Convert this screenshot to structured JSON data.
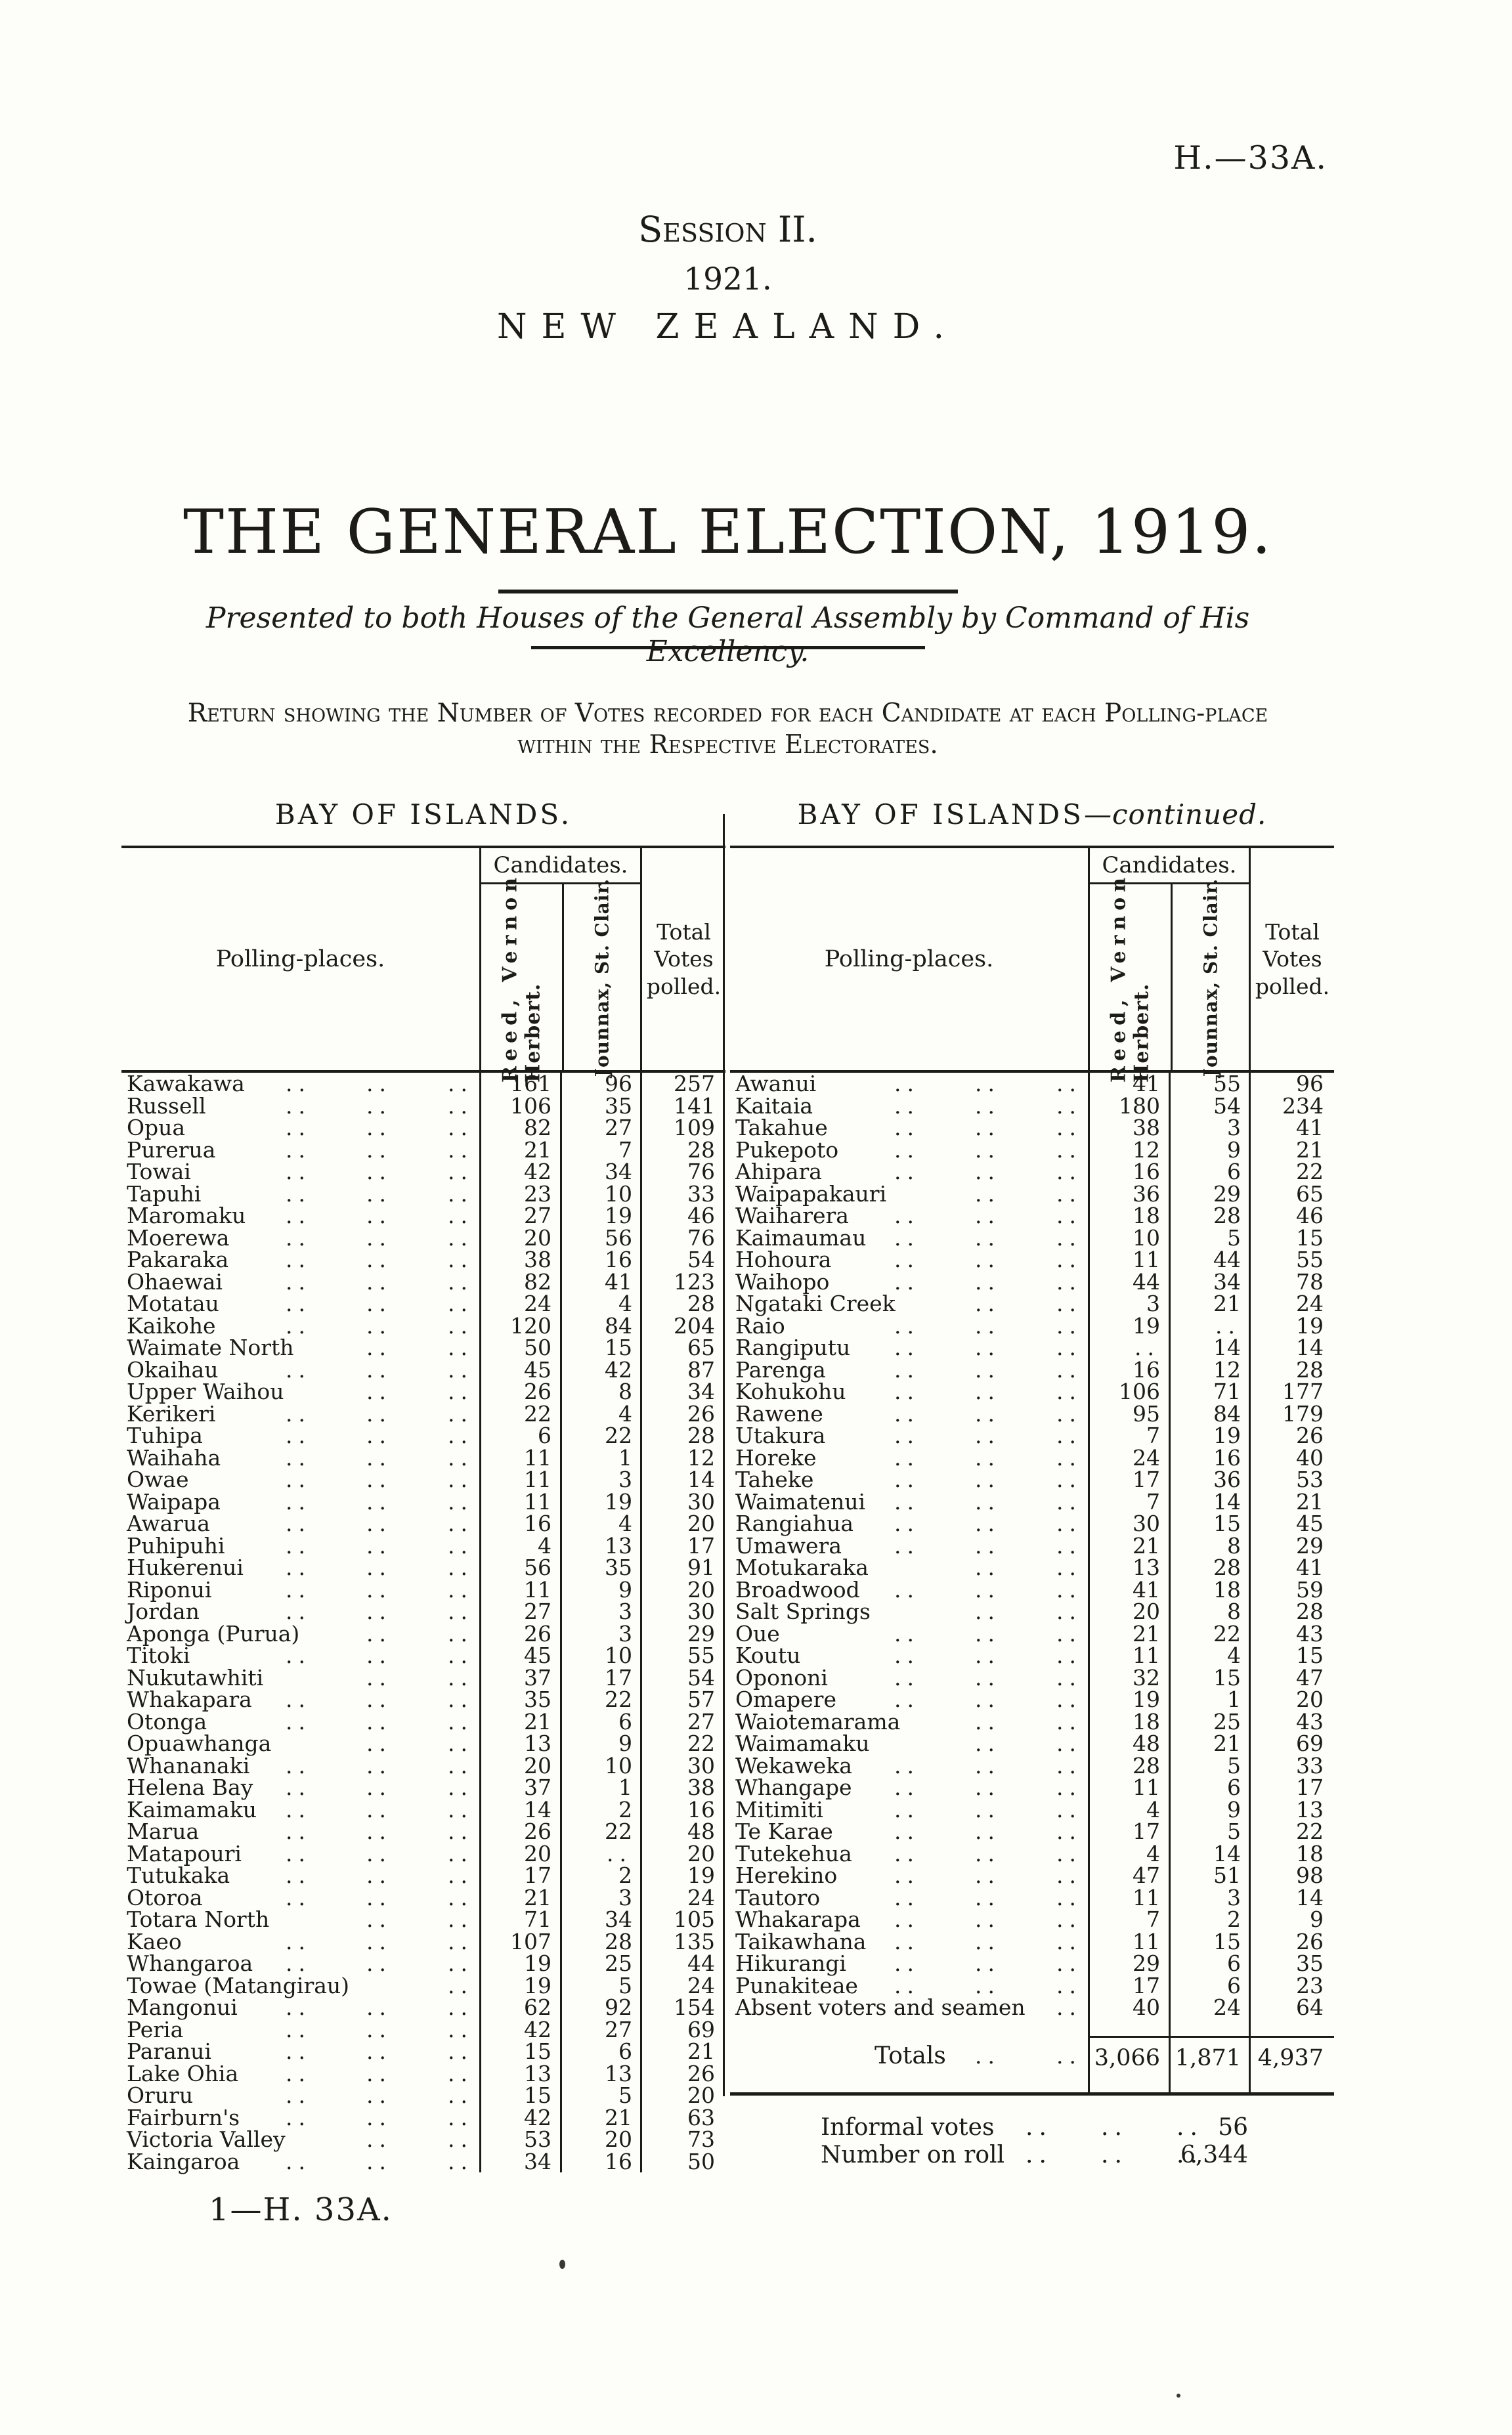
{
  "page": {
    "doc_ref": "H.—33A.",
    "session": "Session II.",
    "year": "1921.",
    "country": "NEW ZEALAND.",
    "title": "THE GENERAL ELECTION, 1919.",
    "presented": "Presented to both Houses of the General Assembly by Command of His Excellency.",
    "return_line1": "Return showing the Number of Votes recorded for each Candidate at each Polling-place",
    "return_line2": "within the Respective Electorates.",
    "footer_ref": "1—H. 33A.",
    "leader_dots": "..",
    "ink_color": "#1c1b17",
    "paper_color": "#fdfdfa"
  },
  "table_headers": {
    "polling_places": "Polling-places.",
    "candidates": "Candidates.",
    "candidate1_line1": "Reed, Vernon",
    "candidate1_line2": "Herbert.",
    "candidate2": "Jounnax, St. Clair.",
    "total_label": "Total Votes polled."
  },
  "left_table": {
    "title": "BAY OF ISLANDS.",
    "rows": [
      [
        "Kawakawa",
        161,
        96,
        257
      ],
      [
        "Russell",
        106,
        35,
        141
      ],
      [
        "Opua",
        82,
        27,
        109
      ],
      [
        "Purerua",
        21,
        7,
        28
      ],
      [
        "Towai",
        42,
        34,
        76
      ],
      [
        "Tapuhi",
        23,
        10,
        33
      ],
      [
        "Maromaku",
        27,
        19,
        46
      ],
      [
        "Moerewa",
        20,
        56,
        76
      ],
      [
        "Pakaraka",
        38,
        16,
        54
      ],
      [
        "Ohaewai",
        82,
        41,
        123
      ],
      [
        "Motatau",
        24,
        4,
        28
      ],
      [
        "Kaikohe",
        120,
        84,
        204
      ],
      [
        "Waimate North",
        50,
        15,
        65
      ],
      [
        "Okaihau",
        45,
        42,
        87
      ],
      [
        "Upper Waihou",
        26,
        8,
        34
      ],
      [
        "Kerikeri",
        22,
        4,
        26
      ],
      [
        "Tuhipa",
        6,
        22,
        28
      ],
      [
        "Waihaha",
        11,
        1,
        12
      ],
      [
        "Owae",
        11,
        3,
        14
      ],
      [
        "Waipapa",
        11,
        19,
        30
      ],
      [
        "Awarua",
        16,
        4,
        20
      ],
      [
        "Puhipuhi",
        4,
        13,
        17
      ],
      [
        "Hukerenui",
        56,
        35,
        91
      ],
      [
        "Riponui",
        11,
        9,
        20
      ],
      [
        "Jordan",
        27,
        3,
        30
      ],
      [
        "Aponga (Purua)",
        26,
        3,
        29
      ],
      [
        "Titoki",
        45,
        10,
        55
      ],
      [
        "Nukutawhiti",
        37,
        17,
        54
      ],
      [
        "Whakapara",
        35,
        22,
        57
      ],
      [
        "Otonga",
        21,
        6,
        27
      ],
      [
        "Opuawhanga",
        13,
        9,
        22
      ],
      [
        "Whananaki",
        20,
        10,
        30
      ],
      [
        "Helena Bay",
        37,
        1,
        38
      ],
      [
        "Kaimamaku",
        14,
        2,
        16
      ],
      [
        "Marua",
        26,
        22,
        48
      ],
      [
        "Matapouri",
        20,
        null,
        20
      ],
      [
        "Tutukaka",
        17,
        2,
        19
      ],
      [
        "Otoroa",
        21,
        3,
        24
      ],
      [
        "Totara North",
        71,
        34,
        105
      ],
      [
        "Kaeo",
        107,
        28,
        135
      ],
      [
        "Whangaroa",
        19,
        25,
        44
      ],
      [
        "Towae (Matangirau)",
        19,
        5,
        24
      ],
      [
        "Mangonui",
        62,
        92,
        154
      ],
      [
        "Peria",
        42,
        27,
        69
      ],
      [
        "Paranui",
        15,
        6,
        21
      ],
      [
        "Lake Ohia",
        13,
        13,
        26
      ],
      [
        "Oruru",
        15,
        5,
        20
      ],
      [
        "Fairburn's",
        42,
        21,
        63
      ],
      [
        "Victoria Valley",
        53,
        20,
        73
      ],
      [
        "Kaingaroa",
        34,
        16,
        50
      ]
    ]
  },
  "right_table": {
    "title_main": "BAY OF ISLANDS",
    "title_suffix": "—continued.",
    "rows": [
      [
        "Awanui",
        41,
        55,
        96
      ],
      [
        "Kaitaia",
        180,
        54,
        234
      ],
      [
        "Takahue",
        38,
        3,
        41
      ],
      [
        "Pukepoto",
        12,
        9,
        21
      ],
      [
        "Ahipara",
        16,
        6,
        22
      ],
      [
        "Waipapakauri",
        36,
        29,
        65
      ],
      [
        "Waiharera",
        18,
        28,
        46
      ],
      [
        "Kaimaumau",
        10,
        5,
        15
      ],
      [
        "Hohoura",
        11,
        44,
        55
      ],
      [
        "Waihopo",
        44,
        34,
        78
      ],
      [
        "Ngataki Creek",
        3,
        21,
        24
      ],
      [
        "Raio",
        19,
        null,
        19
      ],
      [
        "Rangiputu",
        null,
        14,
        14
      ],
      [
        "Parenga",
        16,
        12,
        28
      ],
      [
        "Kohukohu",
        106,
        71,
        177
      ],
      [
        "Rawene",
        95,
        84,
        179
      ],
      [
        "Utakura",
        7,
        19,
        26
      ],
      [
        "Horeke",
        24,
        16,
        40
      ],
      [
        "Taheke",
        17,
        36,
        53
      ],
      [
        "Waimatenui",
        7,
        14,
        21
      ],
      [
        "Rangiahua",
        30,
        15,
        45
      ],
      [
        "Umawera",
        21,
        8,
        29
      ],
      [
        "Motukaraka",
        13,
        28,
        41
      ],
      [
        "Broadwood",
        41,
        18,
        59
      ],
      [
        "Salt Springs",
        20,
        8,
        28
      ],
      [
        "Oue",
        21,
        22,
        43
      ],
      [
        "Koutu",
        11,
        4,
        15
      ],
      [
        "Opononi",
        32,
        15,
        47
      ],
      [
        "Omapere",
        19,
        1,
        20
      ],
      [
        "Waiotemarama",
        18,
        25,
        43
      ],
      [
        "Waimamaku",
        48,
        21,
        69
      ],
      [
        "Wekaweka",
        28,
        5,
        33
      ],
      [
        "Whangape",
        11,
        6,
        17
      ],
      [
        "Mitimiti",
        4,
        9,
        13
      ],
      [
        "Te Karae",
        17,
        5,
        22
      ],
      [
        "Tutekehua",
        4,
        14,
        18
      ],
      [
        "Herekino",
        47,
        51,
        98
      ],
      [
        "Tautoro",
        11,
        3,
        14
      ],
      [
        "Whakarapa",
        7,
        2,
        9
      ],
      [
        "Taikawhana",
        11,
        15,
        26
      ],
      [
        "Hikurangi",
        29,
        6,
        35
      ],
      [
        "Punakiteae",
        17,
        6,
        23
      ],
      [
        "Absent voters and seamen",
        40,
        24,
        64
      ]
    ],
    "totals_label": "Totals",
    "totals": [
      "3,066",
      "1,871",
      "4,937"
    ],
    "informal_label": "Informal votes",
    "informal_value": "56",
    "roll_label": "Number on roll",
    "roll_value": "6,344"
  }
}
